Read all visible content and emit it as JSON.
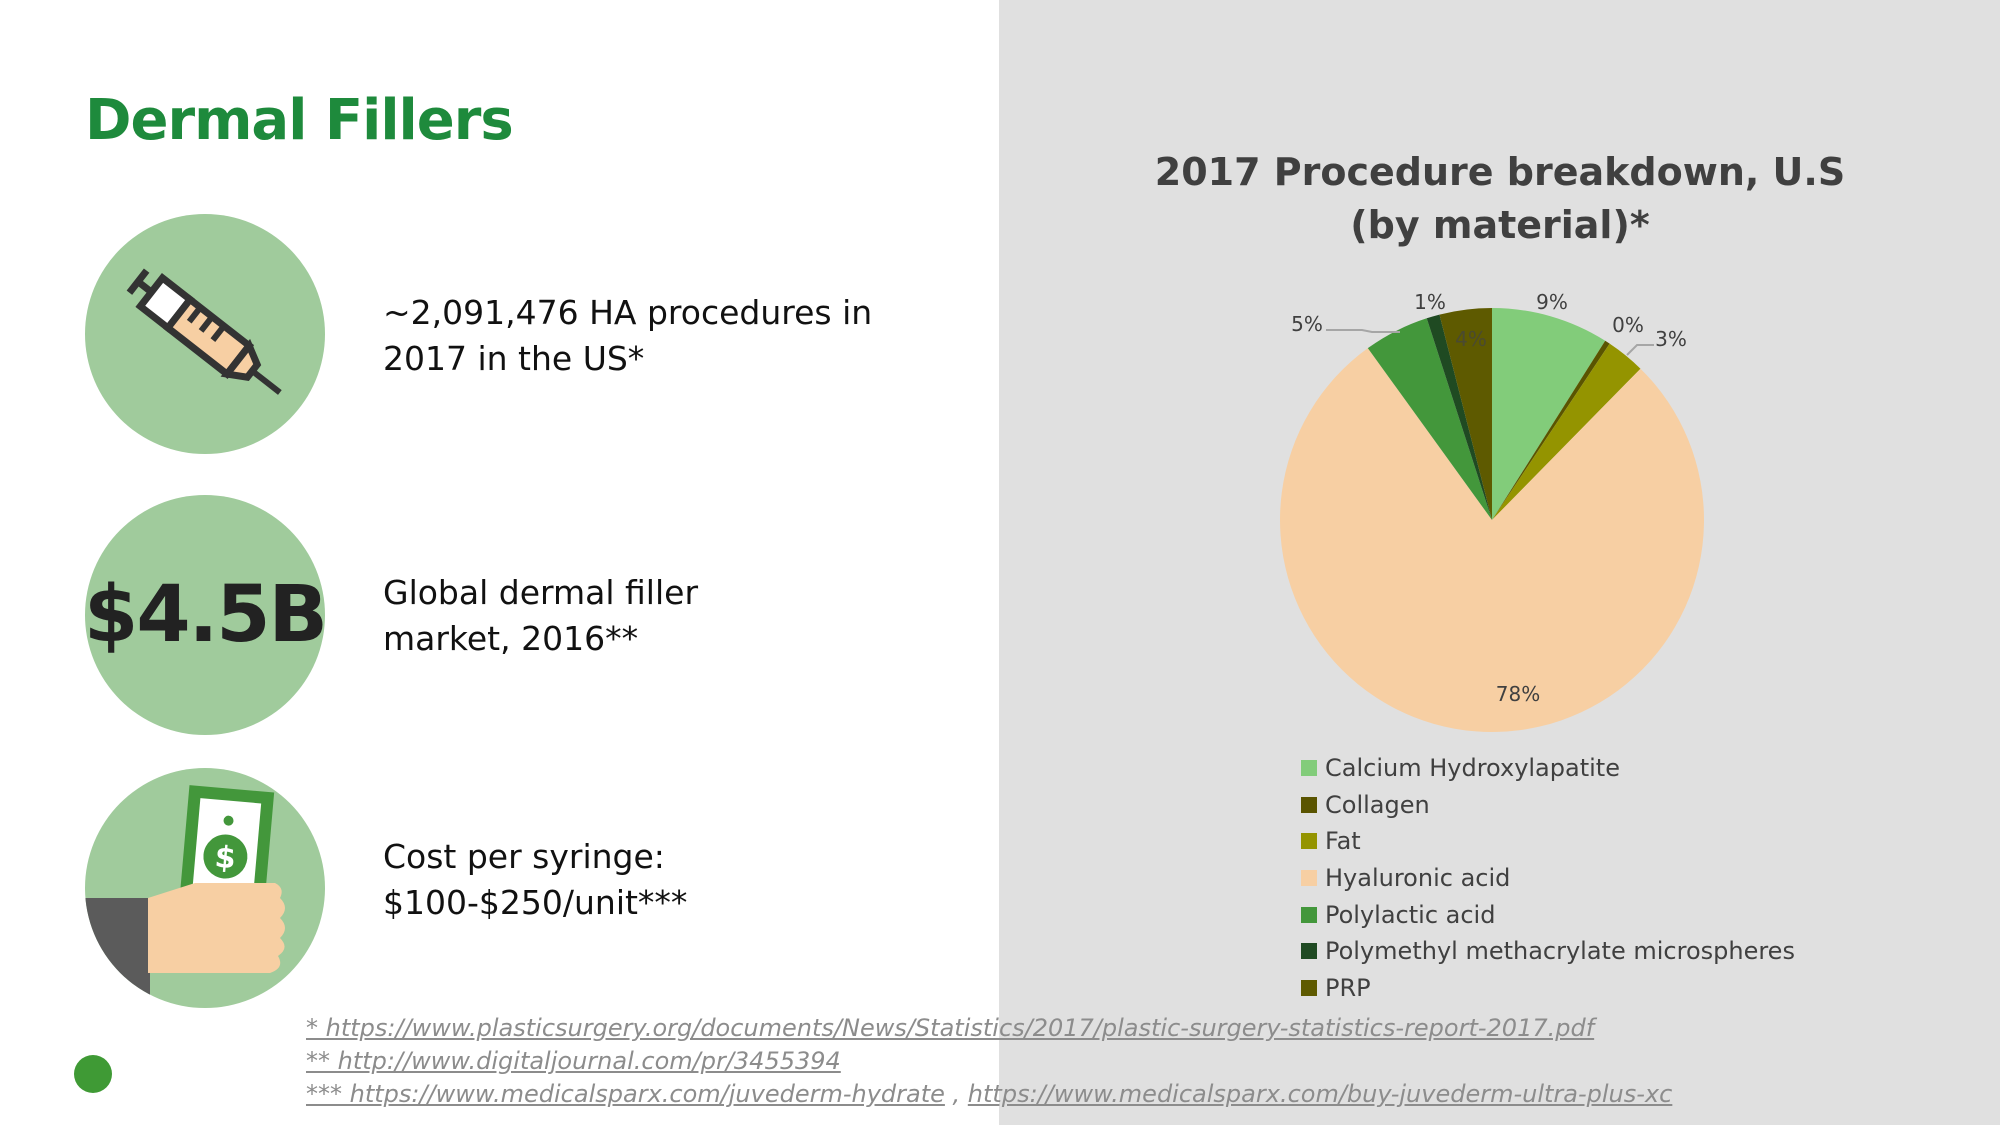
{
  "slide": {
    "title": "Dermal Fillers",
    "stats": [
      {
        "icon": "syringe-icon",
        "lines": [
          "~2,091,476 HA procedures in",
          "2017 in the US*"
        ]
      },
      {
        "icon_text": "$4.5B",
        "lines": [
          "Global dermal filler",
          "market, 2016**"
        ]
      },
      {
        "icon": "hand-holding-money-icon",
        "lines": [
          "Cost per syringe:",
          "$100-$250/unit***"
        ]
      }
    ],
    "footnotes": [
      "* https://www.plasticsurgery.org/documents/News/Statistics/2017/plastic-surgery-statistics-report-2017.pdf",
      "** http://www.digitaljournal.com/pr/3455394",
      "*** https://www.medicalsparx.com/juvederm-hydrate",
      "https://www.medicalsparx.com/buy-juvederm-ultra-plus-xc"
    ],
    "footnote_sep": " , "
  },
  "chart_data": {
    "type": "pie",
    "title": [
      "2017 Procedure breakdown, U.S",
      "(by material)*"
    ],
    "legend_position": "bottom",
    "categories": [
      "Calcium Hydroxylapatite",
      "Collagen",
      "Fat",
      "Hyaluronic acid",
      "Polylactic acid",
      "Polymethyl methacrylate microspheres",
      "PRP"
    ],
    "values": [
      9,
      0.4,
      3,
      78,
      5,
      1,
      4
    ],
    "labels": [
      "9%",
      "0%",
      "3%",
      "78%",
      "5%",
      "1%",
      "4%"
    ],
    "colors": [
      "#82cc7a",
      "#5a5400",
      "#949400",
      "#f7cfa3",
      "#43973b",
      "#1f4a22",
      "#5e5a00"
    ]
  }
}
